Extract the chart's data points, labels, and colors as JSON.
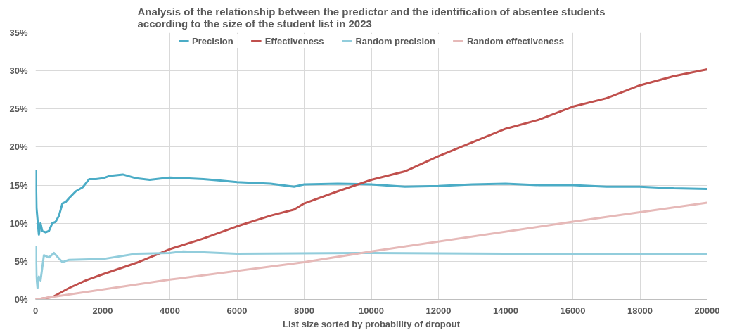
{
  "chart_data": {
    "type": "line",
    "title": "Analysis of the relationship between the predictor and the identification of absentee students\naccording to the size of the student list in 2023",
    "xlabel": "List size sorted by probability of dropout",
    "xlim": [
      0,
      20000
    ],
    "xticks": [
      0,
      2000,
      4000,
      6000,
      8000,
      10000,
      12000,
      14000,
      16000,
      18000,
      20000
    ],
    "ylim": [
      0,
      35
    ],
    "yticks": [
      {
        "value": 0,
        "label": "0%"
      },
      {
        "value": 5,
        "label": "5%"
      },
      {
        "value": 10,
        "label": "10%"
      },
      {
        "value": 15,
        "label": "15%"
      },
      {
        "value": 20,
        "label": "20%"
      },
      {
        "value": 25,
        "label": "25%"
      },
      {
        "value": 30,
        "label": "30%"
      },
      {
        "value": 35,
        "label": "35%"
      }
    ],
    "grid": true,
    "legend": "top",
    "series": [
      {
        "name": "Precision",
        "color": "#4bacc6",
        "x": [
          10,
          30,
          50,
          100,
          150,
          200,
          300,
          400,
          500,
          600,
          700,
          800,
          900,
          1000,
          1200,
          1400,
          1600,
          1800,
          2000,
          2200,
          2600,
          3000,
          3400,
          4000,
          5000,
          5500,
          6000,
          7000,
          7700,
          8000,
          9000,
          10000,
          11000,
          12000,
          13000,
          14000,
          15000,
          16000,
          17000,
          18000,
          19000,
          20000
        ],
        "values": [
          17,
          12,
          11,
          8.5,
          10,
          9,
          8.8,
          9,
          10,
          10.2,
          11,
          12.6,
          12.8,
          13.3,
          14.2,
          14.7,
          15.8,
          15.8,
          15.9,
          16.2,
          16.4,
          15.9,
          15.7,
          16,
          15.8,
          15.6,
          15.4,
          15.2,
          14.8,
          15.1,
          15.2,
          15.1,
          14.8,
          14.9,
          15.1,
          15.2,
          15,
          15,
          14.8,
          14.8,
          14.6,
          14.5
        ]
      },
      {
        "name": "Effectiveness",
        "color": "#c0504d",
        "x": [
          0,
          500,
          1000,
          1500,
          2000,
          3000,
          4000,
          5000,
          6000,
          7000,
          7700,
          8000,
          9000,
          10000,
          11000,
          12000,
          13000,
          14000,
          15000,
          16000,
          17000,
          18000,
          19000,
          20000
        ],
        "values": [
          0,
          0.3,
          1.5,
          2.5,
          3.3,
          4.8,
          6.6,
          8,
          9.6,
          11,
          11.8,
          12.6,
          14.2,
          15.7,
          16.8,
          18.8,
          20.6,
          22.4,
          23.6,
          25.3,
          26.4,
          28.1,
          29.3,
          30.2
        ]
      },
      {
        "name": "Random precision",
        "color": "#92cddc",
        "x": [
          10,
          30,
          60,
          100,
          150,
          250,
          400,
          550,
          800,
          1000,
          2000,
          3000,
          4000,
          4400,
          6000,
          10000,
          14000,
          20000
        ],
        "values": [
          7,
          3,
          1.5,
          3,
          2.5,
          5.8,
          5.5,
          6.1,
          4.9,
          5.2,
          5.3,
          6,
          6.1,
          6.3,
          6,
          6.1,
          6,
          6
        ]
      },
      {
        "name": "Random effectiveness",
        "color": "#e6b9b8",
        "x": [
          0,
          4000,
          8000,
          10000,
          16000,
          20000
        ],
        "values": [
          0,
          2.6,
          4.9,
          6.3,
          10.2,
          12.7
        ]
      }
    ]
  }
}
